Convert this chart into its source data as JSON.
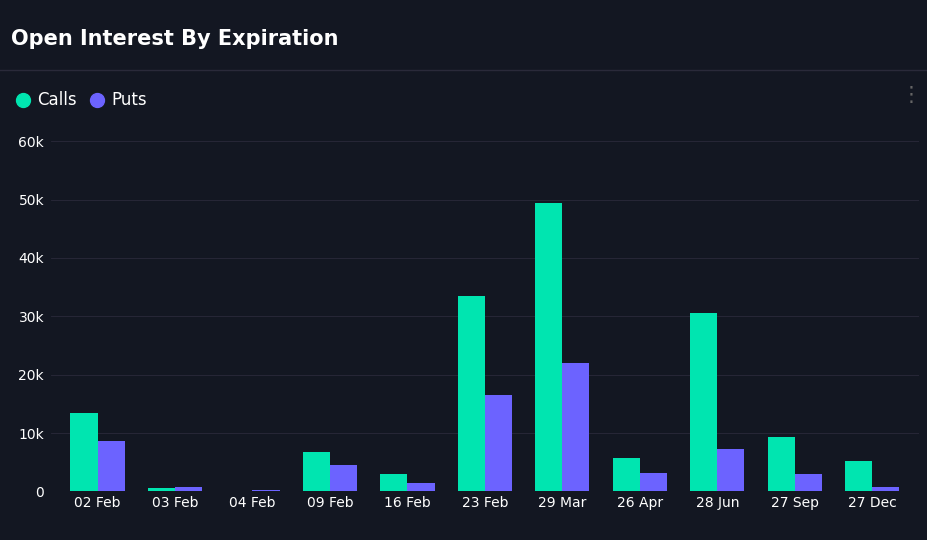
{
  "title": "Open Interest By Expiration",
  "categories": [
    "02 Feb",
    "03 Feb",
    "04 Feb",
    "09 Feb",
    "16 Feb",
    "23 Feb",
    "29 Mar",
    "26 Apr",
    "28 Jun",
    "27 Sep",
    "27 Dec"
  ],
  "calls": [
    13500,
    600,
    0,
    6800,
    3000,
    33500,
    49500,
    5800,
    30500,
    9300,
    5200
  ],
  "puts": [
    8600,
    700,
    300,
    4500,
    1400,
    16500,
    22000,
    3200,
    7200,
    3000,
    800
  ],
  "calls_color": "#00e5b0",
  "puts_color": "#6c63ff",
  "background_color": "#131722",
  "text_color": "#ffffff",
  "grid_color": "#2a2a3a",
  "ylim": [
    0,
    62000
  ],
  "yticks": [
    0,
    10000,
    20000,
    30000,
    40000,
    50000,
    60000
  ],
  "ytick_labels": [
    "0",
    "10k",
    "20k",
    "30k",
    "40k",
    "50k",
    "60k"
  ],
  "legend_calls": "Calls",
  "legend_puts": "Puts",
  "title_fontsize": 15,
  "legend_fontsize": 12,
  "tick_fontsize": 10,
  "bar_width": 0.35
}
